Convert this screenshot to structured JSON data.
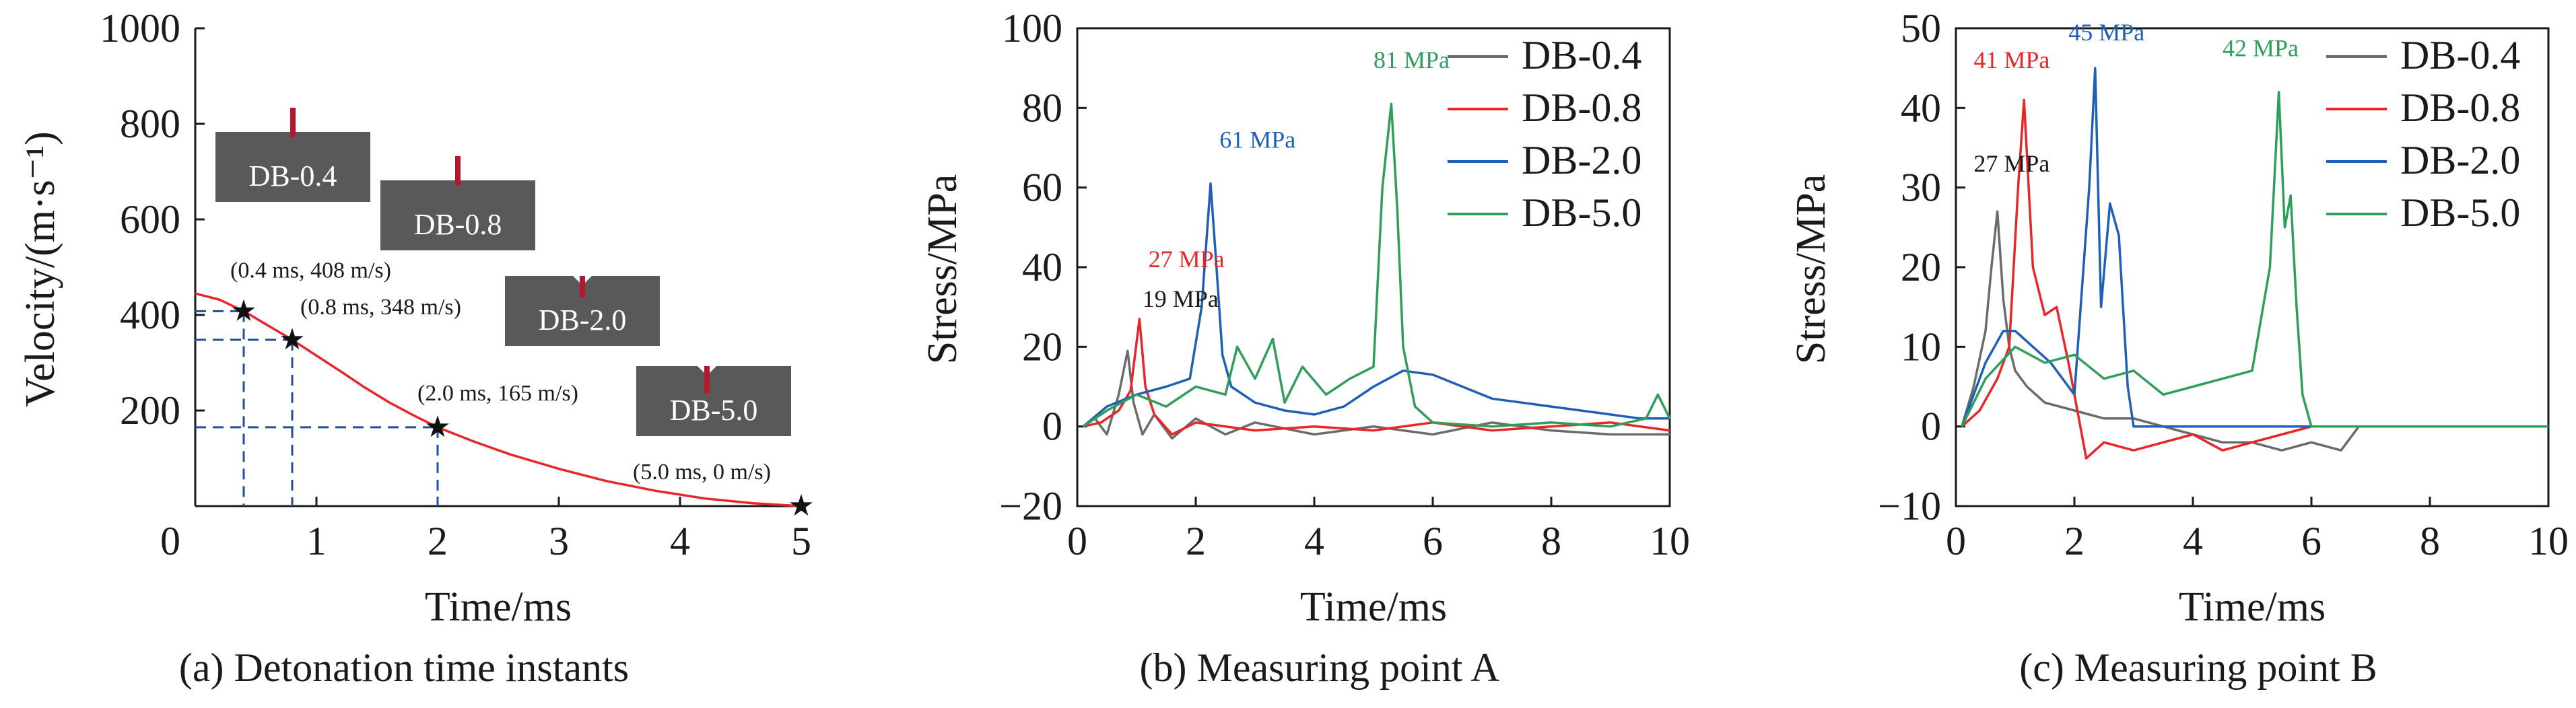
{
  "chart_data": [
    {
      "panel": "a",
      "type": "line",
      "caption": "(a) Detonation time instants",
      "xlabel": "Time/ms",
      "ylabel": "Velocity/(m·s⁻¹)",
      "xlim": [
        0,
        5
      ],
      "ylim": [
        0,
        1000
      ],
      "xticks": [
        0,
        1,
        2,
        3,
        4,
        5
      ],
      "yticks": [
        200,
        400,
        600,
        800,
        1000
      ],
      "origin_label": "0",
      "grid": false,
      "colors": {
        "curve": "#e8262a",
        "guide": "#1f4e9c",
        "marker": "#111111",
        "inset": "#595959",
        "charge": "#b5172d"
      },
      "series": [
        {
          "x": [
            0,
            0.2,
            0.4,
            0.6,
            0.8,
            1.0,
            1.2,
            1.4,
            1.6,
            1.8,
            2.0,
            2.3,
            2.6,
            3.0,
            3.4,
            3.8,
            4.2,
            4.6,
            5.0
          ],
          "values": [
            445,
            432,
            408,
            378,
            348,
            315,
            282,
            248,
            217,
            190,
            165,
            135,
            108,
            78,
            52,
            32,
            16,
            6,
            0
          ]
        }
      ],
      "markers": [
        {
          "x": 0.4,
          "y": 408,
          "label": "(0.4 ms, 408 m/s)"
        },
        {
          "x": 0.8,
          "y": 348,
          "label": "(0.8 ms, 348 m/s)"
        },
        {
          "x": 2.0,
          "y": 165,
          "label": "(2.0 ms, 165 m/s)"
        },
        {
          "x": 5.0,
          "y": 0,
          "label": "(5.0 ms, 0 m/s)"
        }
      ],
      "insets": [
        "DB-0.4",
        "DB-0.8",
        "DB-2.0",
        "DB-5.0"
      ]
    },
    {
      "panel": "b",
      "type": "line",
      "caption": "(b) Measuring point A",
      "xlabel": "Time/ms",
      "ylabel": "Stress/MPa",
      "xlim": [
        0,
        10
      ],
      "ylim": [
        -20,
        100
      ],
      "xticks": [
        0,
        2,
        4,
        6,
        8,
        10
      ],
      "yticks": [
        -20,
        0,
        20,
        40,
        60,
        80,
        100
      ],
      "grid": false,
      "legend_position": "top-right",
      "series": [
        {
          "name": "DB-0.4",
          "color": "#6b6b6b",
          "x": [
            0.1,
            0.3,
            0.5,
            0.7,
            0.85,
            0.95,
            1.1,
            1.3,
            1.6,
            2.0,
            2.5,
            3.0,
            4.0,
            5.0,
            6.0,
            7.0,
            8.0,
            9.0,
            10.0
          ],
          "values": [
            0,
            2,
            -2,
            8,
            19,
            6,
            -2,
            3,
            -3,
            2,
            -2,
            1,
            -2,
            0,
            -2,
            1,
            -1,
            -2,
            -2
          ]
        },
        {
          "name": "DB-0.8",
          "color": "#e8262a",
          "x": [
            0.1,
            0.4,
            0.7,
            0.9,
            1.05,
            1.15,
            1.3,
            1.6,
            2.0,
            3.0,
            4.0,
            5.0,
            6.0,
            7.0,
            8.0,
            9.0,
            10.0
          ],
          "values": [
            0,
            1,
            4,
            9,
            27,
            10,
            3,
            -2,
            1,
            -1,
            0,
            -1,
            1,
            -1,
            0,
            1,
            -1
          ]
        },
        {
          "name": "DB-2.0",
          "color": "#1f5fb8",
          "x": [
            0.1,
            0.5,
            1.0,
            1.5,
            1.9,
            2.1,
            2.25,
            2.35,
            2.45,
            2.6,
            3.0,
            3.5,
            4.0,
            4.5,
            5.0,
            5.5,
            6.0,
            6.5,
            7.0,
            7.5,
            8.0,
            8.5,
            9.0,
            9.5,
            10.0
          ],
          "values": [
            0,
            5,
            8,
            10,
            12,
            30,
            61,
            40,
            18,
            10,
            6,
            4,
            3,
            5,
            10,
            14,
            13,
            10,
            7,
            6,
            5,
            4,
            3,
            2,
            2
          ]
        },
        {
          "name": "DB-5.0",
          "color": "#2e9e5a",
          "x": [
            0.1,
            0.5,
            1.0,
            1.5,
            2.0,
            2.5,
            2.7,
            3.0,
            3.3,
            3.5,
            3.8,
            4.2,
            4.6,
            5.0,
            5.15,
            5.3,
            5.4,
            5.5,
            5.7,
            6.0,
            7.0,
            8.0,
            9.0,
            9.6,
            9.8,
            10.0
          ],
          "values": [
            0,
            4,
            8,
            5,
            10,
            8,
            20,
            12,
            22,
            6,
            15,
            8,
            12,
            15,
            60,
            81,
            55,
            20,
            5,
            1,
            0,
            1,
            0,
            2,
            8,
            2
          ]
        }
      ],
      "annotations": [
        {
          "text": "19 MPa",
          "x": 1.1,
          "y": 30,
          "color": "#1a1a1a"
        },
        {
          "text": "27 MPa",
          "x": 1.2,
          "y": 40,
          "color": "#e8262a"
        },
        {
          "text": "61 MPa",
          "x": 2.4,
          "y": 70,
          "color": "#1f5fb8"
        },
        {
          "text": "81 MPa",
          "x": 5.0,
          "y": 90,
          "color": "#2e9e5a"
        }
      ]
    },
    {
      "panel": "c",
      "type": "line",
      "caption": "(c) Measuring point B",
      "xlabel": "Time/ms",
      "ylabel": "Stress/MPa",
      "xlim": [
        0,
        10
      ],
      "ylim": [
        -10,
        50
      ],
      "xticks": [
        0,
        2,
        4,
        6,
        8,
        10
      ],
      "yticks": [
        -10,
        0,
        10,
        20,
        30,
        40,
        50
      ],
      "grid": false,
      "legend_position": "top-right",
      "series": [
        {
          "name": "DB-0.4",
          "color": "#6b6b6b",
          "x": [
            0.1,
            0.3,
            0.5,
            0.6,
            0.7,
            0.8,
            0.9,
            1.0,
            1.2,
            1.5,
            2.0,
            2.5,
            3.0,
            3.5,
            4.0,
            4.5,
            5.0,
            5.5,
            6.0,
            6.5,
            6.8,
            10.0
          ],
          "values": [
            0,
            5,
            12,
            20,
            27,
            16,
            10,
            7,
            5,
            3,
            2,
            1,
            1,
            0,
            -1,
            -2,
            -2,
            -3,
            -2,
            -3,
            0,
            0
          ]
        },
        {
          "name": "DB-0.8",
          "color": "#e8262a",
          "x": [
            0.1,
            0.4,
            0.7,
            0.9,
            1.05,
            1.15,
            1.3,
            1.5,
            1.7,
            1.9,
            2.2,
            2.5,
            3.0,
            3.5,
            4.0,
            4.5,
            5.0,
            5.5,
            6.0,
            6.3,
            10.0
          ],
          "values": [
            0,
            2,
            6,
            10,
            30,
            41,
            20,
            14,
            15,
            8,
            -4,
            -2,
            -3,
            -2,
            -1,
            -3,
            -2,
            -1,
            0,
            0,
            0
          ]
        },
        {
          "name": "DB-2.0",
          "color": "#1f5fb8",
          "x": [
            0.1,
            0.5,
            0.8,
            1.0,
            1.3,
            1.6,
            2.0,
            2.25,
            2.35,
            2.45,
            2.6,
            2.75,
            2.9,
            3.0,
            10.0
          ],
          "values": [
            0,
            8,
            12,
            12,
            10,
            8,
            4,
            30,
            45,
            15,
            28,
            24,
            5,
            0,
            0
          ]
        },
        {
          "name": "DB-5.0",
          "color": "#2e9e5a",
          "x": [
            0.1,
            0.5,
            1.0,
            1.5,
            2.0,
            2.5,
            3.0,
            3.5,
            4.0,
            4.5,
            5.0,
            5.3,
            5.45,
            5.55,
            5.65,
            5.75,
            5.85,
            6.0,
            10.0
          ],
          "values": [
            0,
            6,
            10,
            8,
            9,
            6,
            7,
            4,
            5,
            6,
            7,
            20,
            42,
            25,
            29,
            15,
            4,
            0,
            0
          ]
        }
      ],
      "annotations": [
        {
          "text": "27 MPa",
          "x": 0.3,
          "y": 32,
          "color": "#1a1a1a"
        },
        {
          "text": "41 MPa",
          "x": 0.3,
          "y": 45,
          "color": "#e8262a"
        },
        {
          "text": "45 MPa",
          "x": 1.9,
          "y": 48.5,
          "color": "#1f5fb8"
        },
        {
          "text": "42 MPa",
          "x": 4.5,
          "y": 46.5,
          "color": "#2e9e5a"
        }
      ]
    }
  ]
}
